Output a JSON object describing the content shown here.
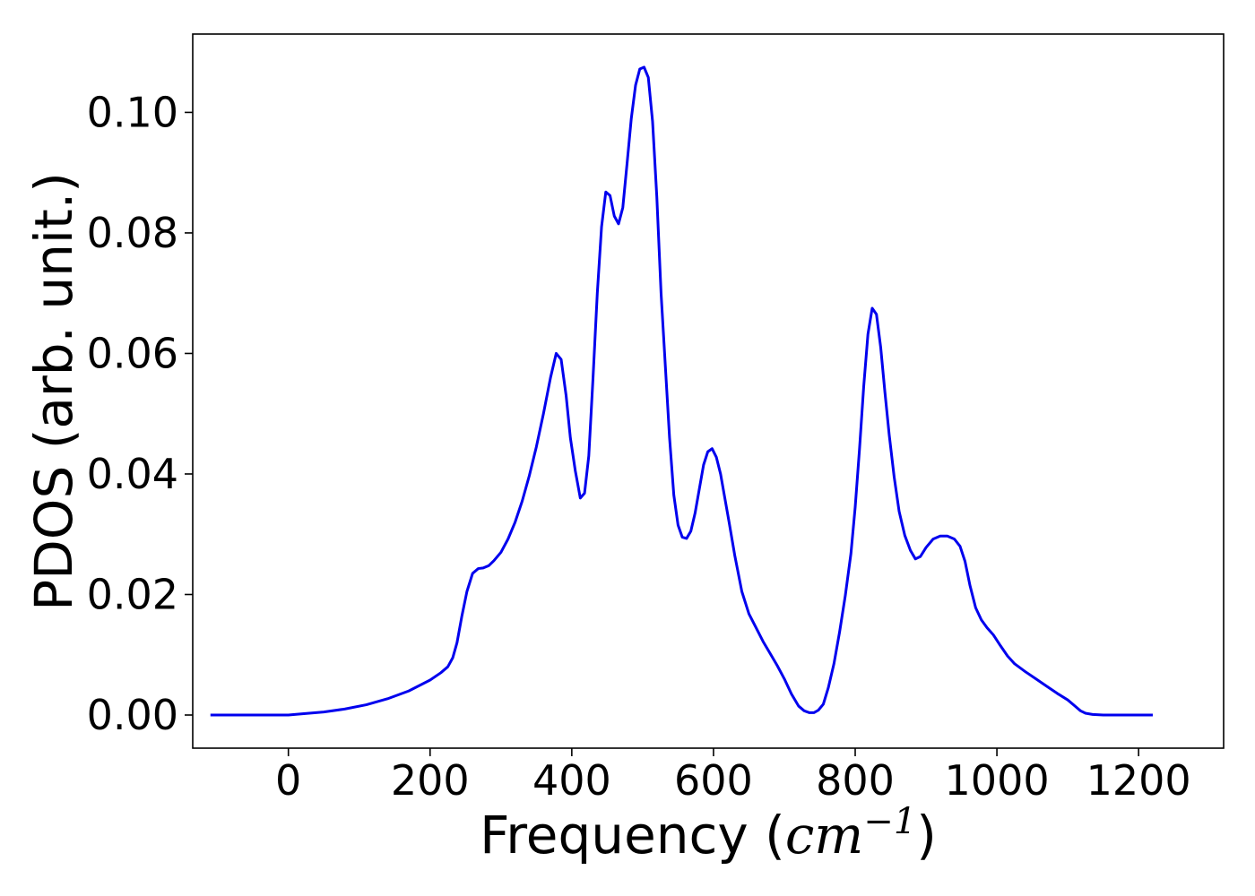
{
  "chart_data": {
    "type": "line",
    "title": "",
    "xlabel": "Frequency",
    "xlabel_unit": "cm",
    "xlabel_unit_exponent": "−1",
    "ylabel": "PDOS (arb. unit.)",
    "xlim": [
      -135,
      1320
    ],
    "ylim": [
      -0.0055,
      0.113
    ],
    "xticks": [
      0,
      200,
      400,
      600,
      800,
      1000,
      1200
    ],
    "xtick_labels": [
      "0",
      "200",
      "400",
      "600",
      "800",
      "1000",
      "1200"
    ],
    "yticks": [
      0.0,
      0.02,
      0.04,
      0.06,
      0.08,
      0.1
    ],
    "ytick_labels": [
      "0.00",
      "0.02",
      "0.04",
      "0.06",
      "0.08",
      "0.10"
    ],
    "grid": false,
    "legend": false,
    "series": [
      {
        "color": "#0000ee",
        "x": [
          -110,
          0,
          20,
          50,
          80,
          110,
          140,
          170,
          200,
          215,
          225,
          232,
          238,
          245,
          252,
          260,
          268,
          275,
          283,
          290,
          300,
          310,
          320,
          330,
          340,
          350,
          360,
          370,
          378,
          385,
          392,
          398,
          405,
          412,
          418,
          424,
          430,
          436,
          442,
          448,
          454,
          460,
          466,
          472,
          478,
          484,
          490,
          496,
          502,
          508,
          514,
          520,
          526,
          532,
          538,
          544,
          550,
          556,
          562,
          568,
          574,
          580,
          586,
          592,
          598,
          604,
          610,
          616,
          622,
          630,
          640,
          650,
          660,
          670,
          680,
          690,
          700,
          710,
          720,
          728,
          735,
          742,
          748,
          755,
          762,
          770,
          778,
          786,
          794,
          800,
          806,
          812,
          818,
          824,
          830,
          836,
          842,
          848,
          855,
          862,
          870,
          878,
          885,
          892,
          900,
          910,
          920,
          930,
          940,
          948,
          955,
          962,
          970,
          978,
          986,
          995,
          1005,
          1015,
          1025,
          1040,
          1055,
          1070,
          1085,
          1100,
          1110,
          1118,
          1125,
          1135,
          1150,
          1175,
          1200,
          1220
        ],
        "y": [
          0.0,
          0.0,
          0.0002,
          0.0005,
          0.001,
          0.0017,
          0.0027,
          0.004,
          0.0058,
          0.007,
          0.008,
          0.0095,
          0.012,
          0.0165,
          0.0205,
          0.0235,
          0.0243,
          0.0244,
          0.0248,
          0.0256,
          0.027,
          0.0292,
          0.032,
          0.0355,
          0.0397,
          0.0445,
          0.05,
          0.056,
          0.06,
          0.059,
          0.053,
          0.046,
          0.0405,
          0.036,
          0.0368,
          0.043,
          0.056,
          0.07,
          0.081,
          0.0868,
          0.0862,
          0.0828,
          0.0815,
          0.0842,
          0.0915,
          0.099,
          0.1045,
          0.1072,
          0.1075,
          0.1058,
          0.0985,
          0.086,
          0.07,
          0.058,
          0.046,
          0.0365,
          0.0315,
          0.0295,
          0.0293,
          0.0305,
          0.0335,
          0.0375,
          0.0415,
          0.0437,
          0.0442,
          0.0428,
          0.04,
          0.036,
          0.032,
          0.0265,
          0.0205,
          0.0168,
          0.0145,
          0.0122,
          0.0102,
          0.0082,
          0.006,
          0.0035,
          0.0015,
          0.0007,
          0.0004,
          0.0004,
          0.0008,
          0.0018,
          0.0045,
          0.0085,
          0.0138,
          0.0198,
          0.0268,
          0.0345,
          0.044,
          0.0545,
          0.0632,
          0.0675,
          0.0665,
          0.061,
          0.0535,
          0.0465,
          0.0395,
          0.0338,
          0.0298,
          0.0273,
          0.0259,
          0.0263,
          0.0278,
          0.0292,
          0.0297,
          0.0297,
          0.0292,
          0.028,
          0.0255,
          0.0215,
          0.0178,
          0.0158,
          0.0145,
          0.0133,
          0.0115,
          0.0098,
          0.0085,
          0.0072,
          0.006,
          0.0048,
          0.0036,
          0.0025,
          0.0015,
          0.0007,
          0.0003,
          0.0001,
          0.0,
          0.0,
          0.0,
          0.0
        ]
      }
    ]
  }
}
